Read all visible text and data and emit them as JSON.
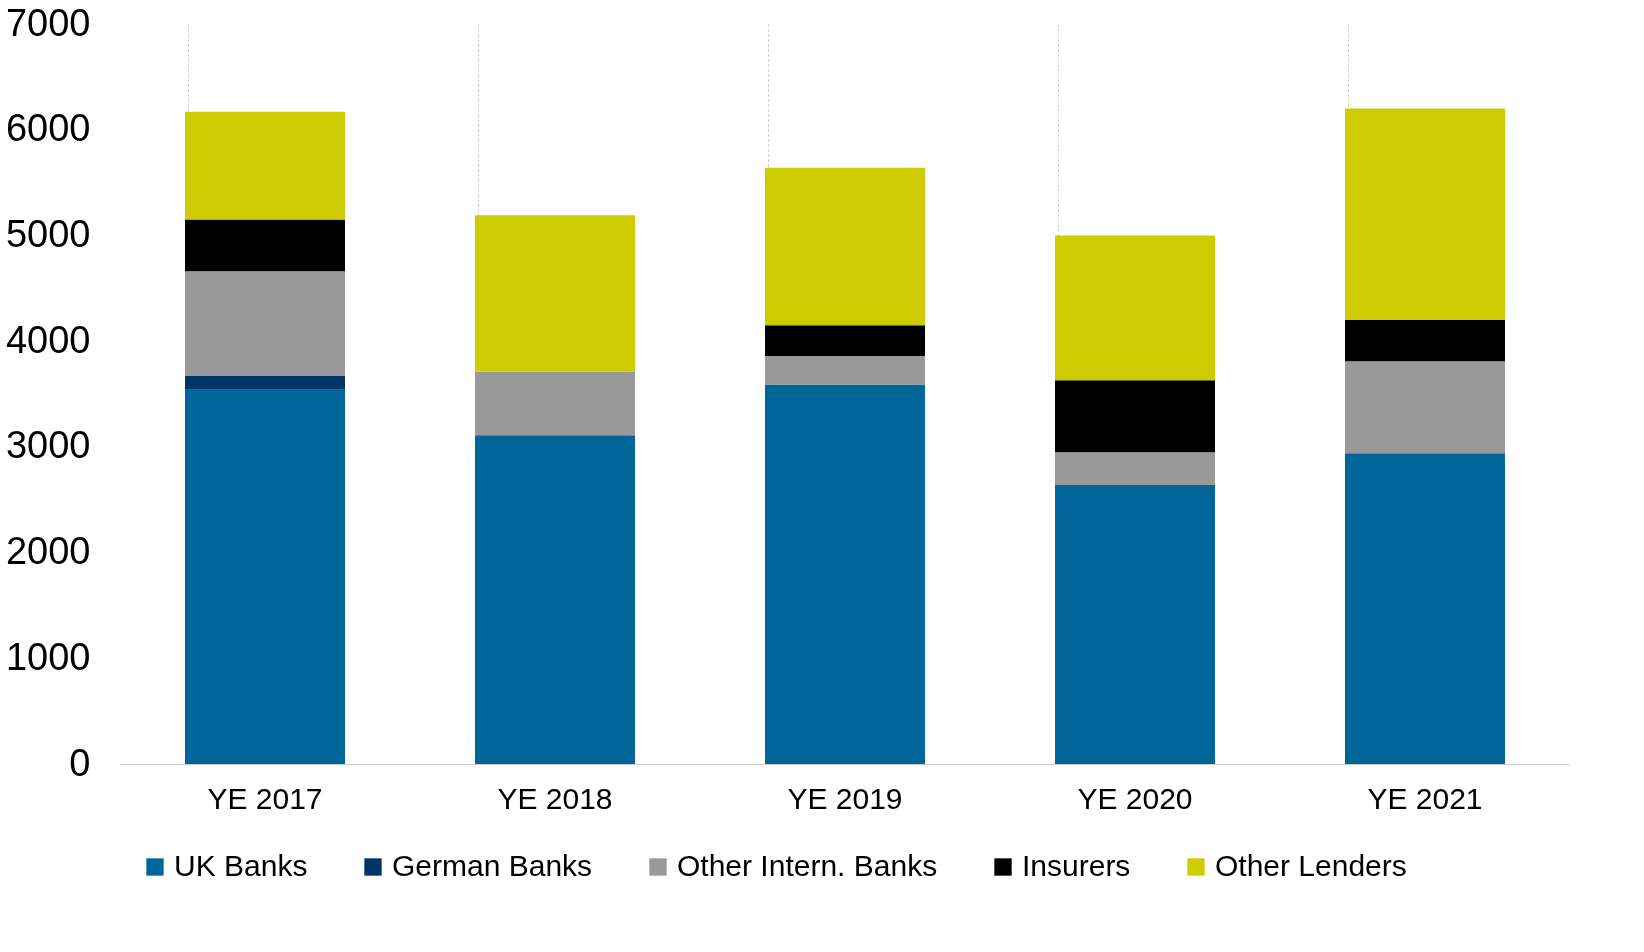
{
  "chart_data": {
    "type": "bar",
    "stacked": true,
    "categories": [
      "YE 2017",
      "YE 2018",
      "YE 2019",
      "YE 2020",
      "YE 2021"
    ],
    "series": [
      {
        "name": "UK Banks",
        "color": "#006699",
        "values": [
          3540,
          3110,
          3590,
          2640,
          2940
        ]
      },
      {
        "name": "German Banks",
        "color": "#003366",
        "values": [
          130,
          null,
          null,
          null,
          null
        ]
      },
      {
        "name": "Other Intern. Banks",
        "color": "#999999",
        "values": [
          990,
          600,
          270,
          310,
          870
        ]
      },
      {
        "name": "Insurers",
        "color": "#000000",
        "values": [
          490,
          null,
          290,
          680,
          390
        ]
      },
      {
        "name": "Other Lenders",
        "color": "#cccc00",
        "values": [
          1020,
          1480,
          1490,
          1370,
          2000
        ]
      }
    ],
    "ylim": [
      0,
      7000
    ],
    "yticks": [
      0,
      1000,
      2000,
      3000,
      4000,
      5000,
      6000,
      7000
    ],
    "grid": "x",
    "legend": "bottom"
  }
}
